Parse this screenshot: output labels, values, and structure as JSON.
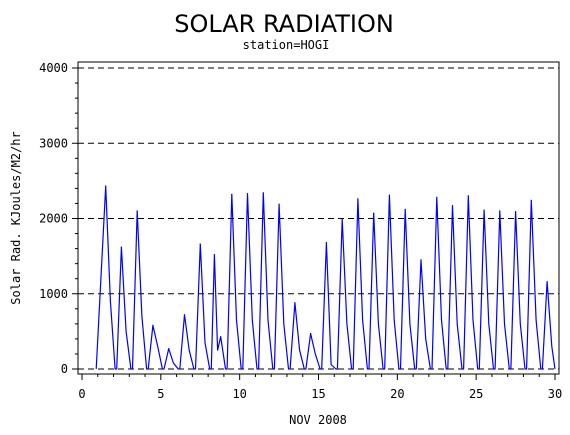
{
  "chart_data": {
    "type": "line",
    "title": "SOLAR RADIATION",
    "subtitle": "station=HOGI",
    "xlabel": "NOV 2008",
    "ylabel": "Solar Rad. KJoules/M2/hr",
    "xlim": [
      0,
      30
    ],
    "ylim": [
      0,
      4000
    ],
    "x_ticks": [
      0,
      5,
      10,
      15,
      20,
      25,
      30
    ],
    "y_ticks": [
      0,
      1000,
      2000,
      3000,
      4000
    ],
    "x_tick_labels": [
      "0",
      "5",
      "10",
      "15",
      "20",
      "25",
      "30"
    ],
    "y_tick_labels": [
      "0",
      "1000",
      "2000",
      "3000",
      "4000"
    ],
    "grid": "horizontal dashed",
    "line_color": "#0000ff",
    "series": [
      {
        "daily_peaks": [
          {
            "day": 1.5,
            "value": 2430
          },
          {
            "day": 2.5,
            "value": 1620
          },
          {
            "day": 3.5,
            "value": 2100
          },
          {
            "day": 4.5,
            "value": 580
          },
          {
            "day": 5.5,
            "value": 270
          },
          {
            "day": 6.5,
            "value": 720
          },
          {
            "day": 7.5,
            "value": 1660
          },
          {
            "day": 8.4,
            "value": 1520
          },
          {
            "day": 9.5,
            "value": 2320
          },
          {
            "day": 10.5,
            "value": 2330
          },
          {
            "day": 11.5,
            "value": 2340
          },
          {
            "day": 12.5,
            "value": 2190
          },
          {
            "day": 13.5,
            "value": 880
          },
          {
            "day": 14.5,
            "value": 470
          },
          {
            "day": 15.5,
            "value": 1680
          },
          {
            "day": 16.5,
            "value": 1990
          },
          {
            "day": 17.5,
            "value": 2260
          },
          {
            "day": 18.5,
            "value": 2070
          },
          {
            "day": 19.5,
            "value": 2310
          },
          {
            "day": 20.5,
            "value": 2120
          },
          {
            "day": 21.5,
            "value": 1450
          },
          {
            "day": 22.5,
            "value": 2280
          },
          {
            "day": 23.5,
            "value": 2170
          },
          {
            "day": 24.5,
            "value": 2300
          },
          {
            "day": 25.5,
            "value": 2110
          },
          {
            "day": 26.5,
            "value": 2100
          },
          {
            "day": 27.5,
            "value": 2090
          },
          {
            "day": 28.5,
            "value": 2240
          },
          {
            "day": 29.5,
            "value": 1160
          }
        ],
        "x": [
          0.9,
          1.2,
          1.5,
          1.8,
          2.1,
          2.2,
          2.5,
          2.8,
          3.1,
          3.2,
          3.5,
          3.8,
          4.1,
          4.2,
          4.5,
          4.8,
          5.1,
          5.2,
          5.5,
          5.8,
          6.1,
          6.2,
          6.5,
          6.8,
          7.1,
          7.2,
          7.5,
          7.8,
          8.1,
          8.2,
          8.4,
          8.6,
          8.8,
          9.1,
          9.2,
          9.5,
          9.8,
          10.1,
          10.2,
          10.5,
          10.8,
          11.1,
          11.2,
          11.5,
          11.8,
          12.1,
          12.2,
          12.5,
          12.8,
          13.1,
          13.2,
          13.5,
          13.8,
          14.1,
          14.2,
          14.5,
          14.8,
          15.1,
          15.2,
          15.5,
          15.8,
          16.1,
          16.2,
          16.5,
          16.8,
          17.1,
          17.2,
          17.5,
          17.8,
          18.1,
          18.2,
          18.5,
          18.8,
          19.1,
          19.2,
          19.5,
          19.8,
          20.1,
          20.2,
          20.5,
          20.8,
          21.1,
          21.2,
          21.5,
          21.8,
          22.1,
          22.2,
          22.5,
          22.8,
          23.1,
          23.2,
          23.5,
          23.8,
          24.1,
          24.2,
          24.5,
          24.8,
          25.1,
          25.2,
          25.5,
          25.8,
          26.1,
          26.2,
          26.5,
          26.8,
          27.1,
          27.2,
          27.5,
          27.8,
          28.1,
          28.2,
          28.5,
          28.8,
          29.1,
          29.2,
          29.5,
          29.8,
          30.0
        ],
        "y": [
          0,
          1200,
          2430,
          900,
          0,
          0,
          1620,
          500,
          0,
          0,
          2100,
          700,
          0,
          0,
          580,
          300,
          0,
          0,
          270,
          80,
          0,
          0,
          720,
          250,
          0,
          0,
          1660,
          350,
          0,
          0,
          1520,
          250,
          430,
          0,
          0,
          2320,
          650,
          0,
          0,
          2330,
          650,
          0,
          0,
          2340,
          650,
          0,
          0,
          2190,
          600,
          0,
          0,
          880,
          250,
          0,
          0,
          470,
          200,
          0,
          0,
          1680,
          60,
          0,
          0,
          1990,
          600,
          0,
          0,
          2260,
          650,
          0,
          0,
          2070,
          600,
          0,
          0,
          2310,
          650,
          0,
          0,
          2120,
          600,
          0,
          0,
          1450,
          400,
          0,
          0,
          2280,
          650,
          0,
          0,
          2170,
          600,
          0,
          0,
          2300,
          650,
          0,
          0,
          2110,
          600,
          0,
          0,
          2100,
          600,
          0,
          0,
          2090,
          600,
          0,
          0,
          2240,
          650,
          0,
          0,
          1160,
          300,
          0
        ]
      }
    ]
  }
}
